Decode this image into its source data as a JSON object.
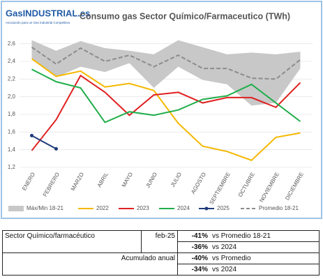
{
  "chart_data": {
    "type": "line",
    "logo": {
      "brand": "GasINDUSTRIAL.es",
      "tagline": "Asociación para un Gas Industrial Competitivo"
    },
    "title": "Consumo gas Sector Químico/Farmaceutico (TWh)",
    "categories": [
      "ENERO",
      "FEBRERO",
      "MARZO",
      "ABRIL",
      "MAYO",
      "JUNIO",
      "JULIO",
      "AGOSTO",
      "SEPTIEMBRE",
      "OCTUBRE",
      "NOVIEMBRE",
      "DICIEMBRE"
    ],
    "ylim": [
      1.2,
      2.7
    ],
    "yticks": [
      {
        "value": 1.2,
        "label": "1,2"
      },
      {
        "value": 1.4,
        "label": "1,4"
      },
      {
        "value": 1.6,
        "label": "1,6"
      },
      {
        "value": 1.8,
        "label": "1,8"
      },
      {
        "value": 2.0,
        "label": "2,0"
      },
      {
        "value": 2.2,
        "label": "2,2"
      },
      {
        "value": 2.4,
        "label": "2,4"
      },
      {
        "value": 2.6,
        "label": "2,6"
      }
    ],
    "band": {
      "name": "Máx/Min 18-21",
      "color": "#c8c8c8",
      "high": [
        2.64,
        2.52,
        2.63,
        2.55,
        2.52,
        2.48,
        2.64,
        2.56,
        2.48,
        2.5,
        2.48,
        2.51
      ],
      "low": [
        2.44,
        2.22,
        2.34,
        2.28,
        2.38,
        2.1,
        2.34,
        2.19,
        2.14,
        1.9,
        1.93,
        2.32
      ]
    },
    "series": [
      {
        "name": "2022",
        "color": "#f5b800",
        "values": [
          2.43,
          2.23,
          2.29,
          2.11,
          2.15,
          2.07,
          1.7,
          1.44,
          1.38,
          1.28,
          1.54,
          1.59
        ]
      },
      {
        "name": "2023",
        "color": "#e02020",
        "values": [
          1.39,
          1.74,
          2.24,
          2.05,
          1.79,
          2.02,
          2.05,
          1.93,
          1.99,
          1.99,
          1.88,
          2.16
        ]
      },
      {
        "name": "2024",
        "color": "#1fae4a",
        "values": [
          2.31,
          2.17,
          2.1,
          1.71,
          1.83,
          1.79,
          1.85,
          1.97,
          2.01,
          2.14,
          1.93,
          1.72
        ]
      },
      {
        "name": "2025",
        "color": "#1f3a7a",
        "marker": true,
        "values": [
          1.56,
          1.41,
          null,
          null,
          null,
          null,
          null,
          null,
          null,
          null,
          null,
          null
        ]
      },
      {
        "name": "Promedio 18-21",
        "color": "#8c8c8c",
        "dashed": true,
        "values": [
          2.56,
          2.37,
          2.55,
          2.4,
          2.47,
          2.34,
          2.47,
          2.32,
          2.32,
          2.21,
          2.2,
          2.42
        ]
      }
    ]
  },
  "table": {
    "rows": [
      {
        "label": "Sector Químico/farmacéutico",
        "period": "feb-25",
        "change": "-41%",
        "reference": "vs Promedio 18-21"
      },
      {
        "change": "-36%",
        "reference": "vs 2024"
      },
      {
        "label": "Acumulado anual",
        "change": "-40%",
        "reference": "vs Promedio"
      },
      {
        "change": "-34%",
        "reference": "vs 2024"
      }
    ]
  }
}
